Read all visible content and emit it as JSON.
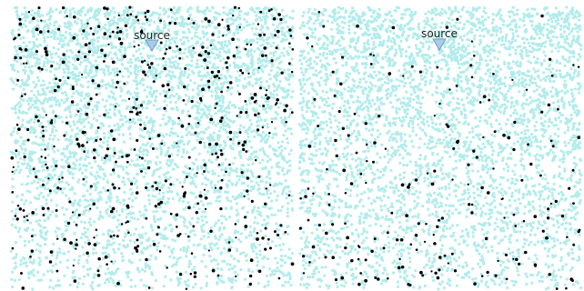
{
  "chart_data": [
    {
      "type": "scatter",
      "panel": "left",
      "title": "",
      "xlabel": "",
      "ylabel": "",
      "xlim": [
        0,
        1
      ],
      "ylim": [
        0,
        1
      ],
      "grid": false,
      "legend": "none",
      "colors": {
        "background_particles": "#b2ecec",
        "tracer_particles": "#000000",
        "source_marker": "#a9cbe6",
        "source_marker_edge": "#6f9fc9"
      },
      "source": {
        "label": "source",
        "x": 0.5,
        "y": 0.88
      },
      "particle_distribution": {
        "background_density_top": 1.0,
        "background_density_bottom": 0.38,
        "tracer_density_top": 0.95,
        "tracer_density_bottom": 0.45
      }
    },
    {
      "type": "scatter",
      "panel": "right",
      "title": "",
      "xlabel": "",
      "ylabel": "",
      "xlim": [
        0,
        1
      ],
      "ylim": [
        0,
        1
      ],
      "grid": false,
      "legend": "none",
      "colors": {
        "background_particles": "#b2ecec",
        "tracer_particles": "#000000",
        "source_marker": "#a9cbe6",
        "source_marker_edge": "#6f9fc9"
      },
      "source": {
        "label": "source",
        "x": 0.5,
        "y": 0.88
      },
      "particle_distribution": {
        "background_density_top": 1.0,
        "background_density_bottom": 0.42,
        "tracer_density_top": 0.15,
        "tracer_density_bottom": 0.55
      }
    }
  ]
}
